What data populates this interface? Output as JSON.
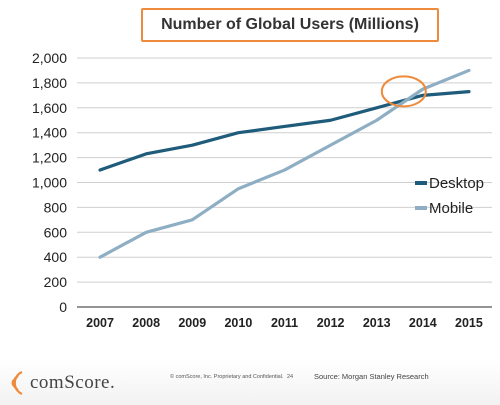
{
  "chart_data": {
    "type": "line",
    "title": "Number of Global Users (Millions)",
    "xlabel": "",
    "ylabel": "",
    "x": [
      "2007",
      "2008",
      "2009",
      "2010",
      "2011",
      "2012",
      "2013",
      "2014",
      "2015"
    ],
    "ylim": [
      0,
      2000
    ],
    "yticks": [
      0,
      200,
      400,
      600,
      800,
      1000,
      1200,
      1400,
      1600,
      1800,
      2000
    ],
    "ytick_labels": [
      "0",
      "200",
      "400",
      "600",
      "800",
      "1,000",
      "1,200",
      "1,400",
      "1,600",
      "1,800",
      "2,000"
    ],
    "grid": true,
    "legend": "right",
    "series": [
      {
        "name": "Desktop",
        "color": "#1f5b7a",
        "values": [
          1100,
          1230,
          1300,
          1400,
          1450,
          1500,
          1600,
          1700,
          1730
        ]
      },
      {
        "name": "Mobile",
        "color": "#8eaec4",
        "values": [
          400,
          600,
          700,
          950,
          1100,
          1300,
          1500,
          1750,
          1900
        ]
      }
    ],
    "annotation": {
      "type": "ellipse-highlight",
      "color": "#ee8a3c",
      "x": "2014",
      "y": 1700
    }
  },
  "footer": {
    "brand": "comScore.",
    "copyright": "© comScore, Inc. Proprietary and Confidential.",
    "page_number": "24",
    "source": "Source: Morgan Stanley Research",
    "brand_color": "#ee8a3c"
  }
}
